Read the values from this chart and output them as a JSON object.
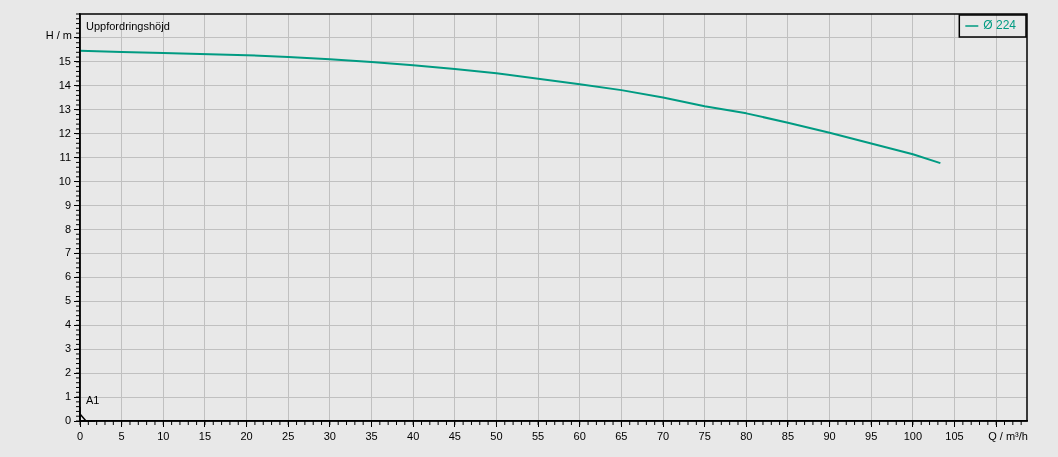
{
  "chart_data": {
    "type": "line",
    "title": "Uppfordringshöjd",
    "xlabel": "Q / m³/h",
    "ylabel": "H / m",
    "x": [
      0,
      5,
      10,
      20,
      25,
      30,
      35,
      40,
      45,
      50,
      60,
      65,
      70,
      75,
      80,
      85,
      90,
      95,
      100,
      103.3
    ],
    "series": [
      {
        "name": "Ø 224",
        "color": "#009b82",
        "values": [
          15.46,
          15.41,
          15.37,
          15.28,
          15.2,
          15.11,
          14.99,
          14.86,
          14.7,
          14.53,
          14.07,
          13.82,
          13.51,
          13.15,
          12.85,
          12.46,
          12.04,
          11.59,
          11.14,
          10.77
        ]
      }
    ],
    "xlim": [
      0,
      113.7
    ],
    "xticks": [
      0,
      5,
      10,
      15,
      20,
      25,
      30,
      35,
      40,
      45,
      50,
      55,
      60,
      65,
      70,
      75,
      80,
      85,
      90,
      95,
      100,
      105,
      {
        "value": 110,
        "label": null
      }
    ],
    "ylim": [
      0,
      17
    ],
    "yticks": [
      0,
      1,
      2,
      3,
      4,
      5,
      6,
      7,
      8,
      9,
      10,
      11,
      12,
      13,
      14,
      15,
      {
        "value": 16,
        "label": null
      }
    ],
    "annotations": [
      "A1"
    ],
    "grid": true,
    "legend": "top right",
    "marker": "none",
    "line_style": "solid"
  }
}
